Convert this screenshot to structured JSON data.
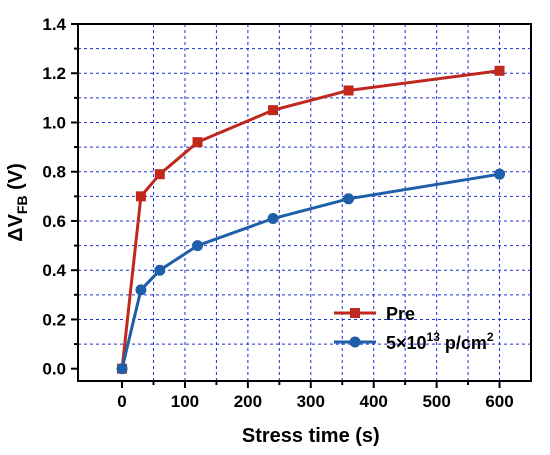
{
  "chart_data": {
    "type": "line",
    "title": "",
    "xlabel": "Stress time (s)",
    "ylabel": {
      "prefix": "ΔV",
      "sub": "FB",
      "suffix": " (V)"
    },
    "xlim": [
      -70,
      650
    ],
    "ylim": [
      -0.05,
      1.4
    ],
    "x_ticks": [
      0,
      100,
      200,
      300,
      400,
      500,
      600
    ],
    "x_tick_labels": [
      "0",
      "100",
      "200",
      "300",
      "400",
      "500",
      "600"
    ],
    "y_ticks": [
      0.0,
      0.2,
      0.4,
      0.6,
      0.8,
      1.0,
      1.2,
      1.4
    ],
    "y_tick_labels": [
      "0.0",
      "0.2",
      "0.4",
      "0.6",
      "0.8",
      "1.0",
      "1.2",
      "1.4"
    ],
    "grid": true,
    "legend_position": "bottom-right",
    "series": [
      {
        "name": "Pre",
        "name_parts": {
          "base": "Pre",
          "sup": "",
          "tail": ""
        },
        "color": "#c0281e",
        "marker": "square",
        "x": [
          0,
          30,
          60,
          120,
          240,
          360,
          600
        ],
        "y": [
          0.0,
          0.7,
          0.79,
          0.92,
          1.05,
          1.13,
          1.21
        ]
      },
      {
        "name": "5×10¹³ p/cm²",
        "name_parts": {
          "base": "5×10",
          "sup": "13",
          "tail": " p/cm",
          "sup2": "2"
        },
        "color": "#1f5ea8",
        "marker": "circle",
        "x": [
          0,
          30,
          60,
          120,
          240,
          360,
          600
        ],
        "y": [
          0.0,
          0.32,
          0.4,
          0.5,
          0.61,
          0.69,
          0.79
        ]
      }
    ]
  }
}
